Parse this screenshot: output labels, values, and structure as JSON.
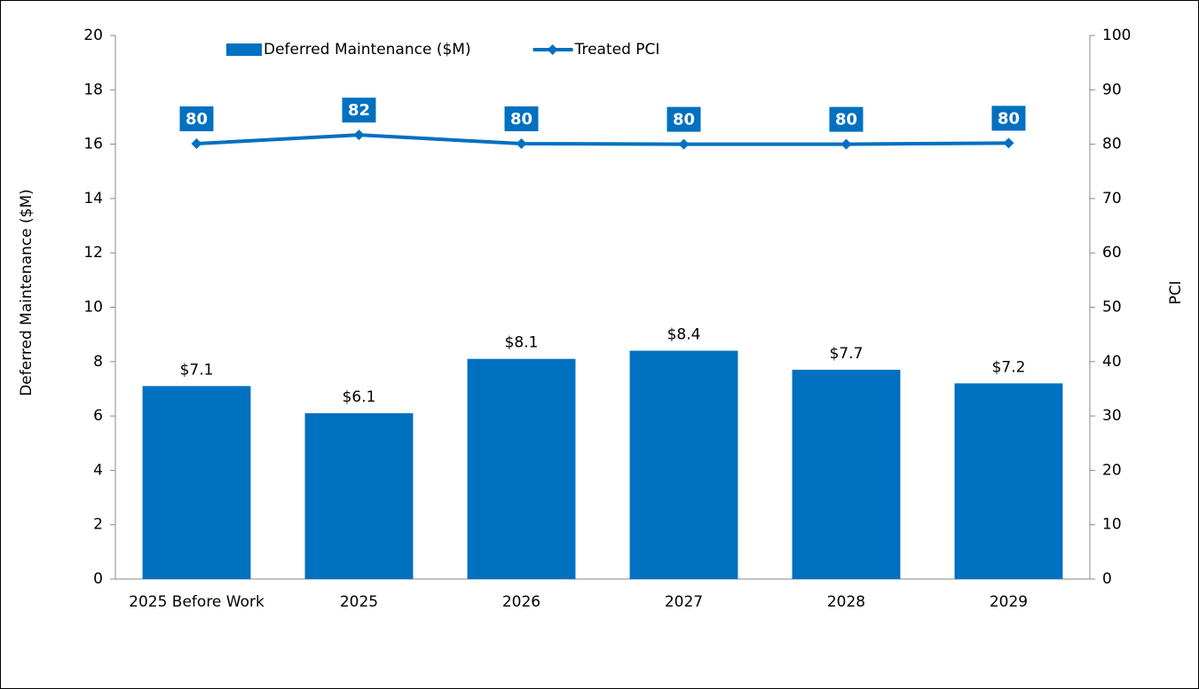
{
  "chart_data": {
    "type": "bar",
    "categories": [
      "2025 Before Work",
      "2025",
      "2026",
      "2027",
      "2028",
      "2029"
    ],
    "series": [
      {
        "name": "Deferred Maintenance ($M)",
        "type": "bar",
        "color": "#0070c0",
        "values": [
          7.1,
          6.1,
          8.1,
          8.4,
          7.7,
          7.2
        ],
        "value_labels": [
          "$7.1",
          "$6.1",
          "$8.1",
          "$8.4",
          "$7.7",
          "$7.2"
        ]
      },
      {
        "name": "Treated PCI",
        "type": "line",
        "axis": "y2",
        "color": "#0070c0",
        "values": [
          80.1,
          81.7,
          80.1,
          80,
          80,
          80.2
        ],
        "value_labels": [
          "80",
          "82",
          "80",
          "80",
          "80",
          "80"
        ]
      }
    ],
    "ylabel": "Deferred Maintenance ($M)",
    "y2label": "PCI",
    "ylim": [
      0,
      20
    ],
    "yticks": [
      0,
      2,
      4,
      6,
      8,
      10,
      12,
      14,
      16,
      18,
      20
    ],
    "y2lim": [
      0,
      100
    ],
    "y2ticks": [
      0,
      10,
      20,
      30,
      40,
      50,
      60,
      70,
      80,
      90,
      100
    ],
    "legend": "top"
  }
}
